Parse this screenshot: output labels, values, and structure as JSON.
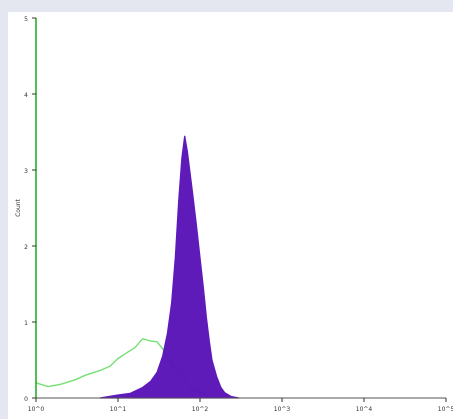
{
  "chart_data": {
    "type": "area",
    "title": "",
    "xlabel": "",
    "ylabel": "Count",
    "xscale": "log",
    "xlim": [
      1,
      100000
    ],
    "ylim": [
      0,
      5
    ],
    "xticks": [
      1,
      10,
      100,
      1000,
      10000,
      100000
    ],
    "xtick_labels": [
      "10^0",
      "10^1",
      "10^2",
      "10^3",
      "10^4",
      "10^5"
    ],
    "yticks": [
      0,
      1,
      2,
      3,
      4,
      5
    ],
    "ytick_labels": [
      "0",
      "1",
      "2",
      "3",
      "4",
      "5"
    ],
    "grid": false,
    "series": [
      {
        "style": "line",
        "color": "#66dd66",
        "x": [
          1,
          1.4,
          2,
          3,
          4,
          6,
          8,
          10,
          13,
          16,
          20,
          25,
          30,
          36,
          42,
          50,
          60,
          70,
          80,
          90,
          100,
          110,
          120,
          140
        ],
        "y": [
          0.2,
          0.15,
          0.18,
          0.24,
          0.3,
          0.36,
          0.42,
          0.52,
          0.6,
          0.66,
          0.78,
          0.75,
          0.74,
          0.63,
          0.5,
          0.38,
          0.3,
          0.2,
          0.13,
          0.09,
          0.07,
          0.05,
          0.03,
          0.0
        ]
      },
      {
        "style": "filled",
        "color": "#5a13b8",
        "x": [
          6,
          10,
          14,
          20,
          25,
          30,
          35,
          40,
          45,
          50,
          55,
          60,
          65,
          70,
          80,
          90,
          100,
          110,
          120,
          130,
          140,
          160,
          180,
          200,
          240,
          300
        ],
        "y": [
          0.0,
          0.04,
          0.06,
          0.14,
          0.22,
          0.34,
          0.55,
          0.85,
          1.25,
          1.85,
          2.6,
          3.15,
          3.45,
          3.25,
          2.75,
          2.3,
          1.85,
          1.45,
          1.05,
          0.75,
          0.5,
          0.28,
          0.14,
          0.07,
          0.02,
          0.0
        ]
      }
    ]
  },
  "colors": {
    "axis": "#1aa81a",
    "frame_bg": "#e4e7ef",
    "panel_bg": "#ffffff"
  }
}
